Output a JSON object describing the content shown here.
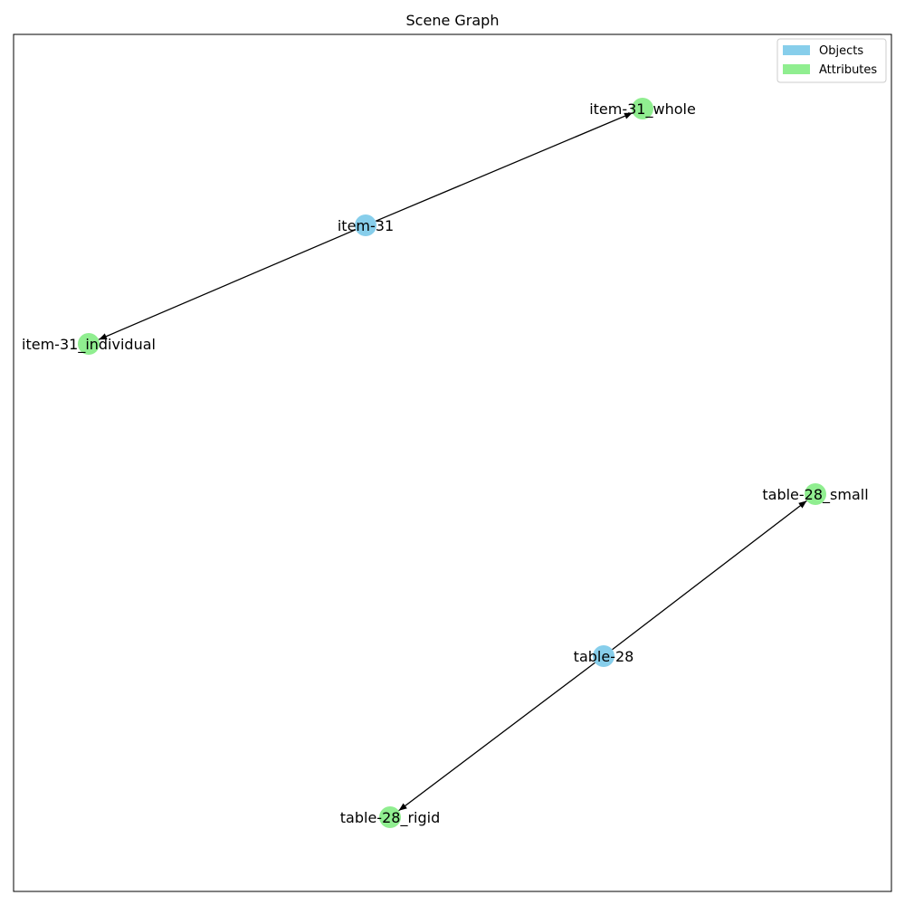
{
  "title": "Scene Graph",
  "legend": {
    "items": [
      {
        "label": "Objects",
        "color": "#87ceeb"
      },
      {
        "label": "Attributes",
        "color": "#90ee90"
      }
    ]
  },
  "colors": {
    "object": "#87ceeb",
    "attribute": "#90ee90",
    "edge": "#000000",
    "frame": "#000000"
  },
  "nodes": [
    {
      "id": "item-31",
      "label": "item-31",
      "kind": "object"
    },
    {
      "id": "item-31_whole",
      "label": "item-31_whole",
      "kind": "attribute"
    },
    {
      "id": "item-31_individual",
      "label": "item-31_individual",
      "kind": "attribute"
    },
    {
      "id": "table-28",
      "label": "table-28",
      "kind": "object"
    },
    {
      "id": "table-28_small",
      "label": "table-28_small",
      "kind": "attribute"
    },
    {
      "id": "table-28_rigid",
      "label": "table-28_rigid",
      "kind": "attribute"
    }
  ],
  "edges": [
    {
      "source": "item-31",
      "target": "item-31_whole"
    },
    {
      "source": "item-31",
      "target": "item-31_individual"
    },
    {
      "source": "table-28",
      "target": "table-28_small"
    },
    {
      "source": "table-28",
      "target": "table-28_rigid"
    }
  ]
}
